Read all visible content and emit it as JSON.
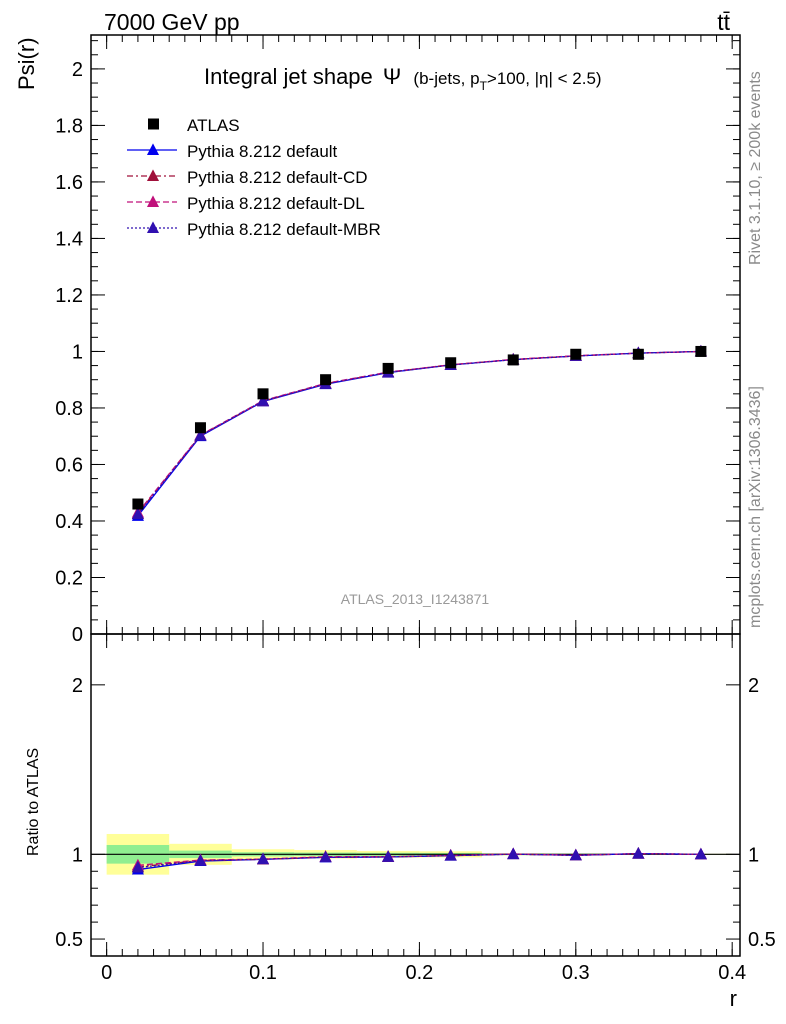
{
  "header": {
    "left": "7000 GeV pp",
    "right": "tt̄"
  },
  "side_labels": {
    "rivet": "Rivet 3.1.10, ≥ 200k events",
    "mcplots": "mcplots.cern.ch [arXiv:1306.3436]"
  },
  "chart_data": {
    "type": "line",
    "title": "Integral jet shape",
    "title_symbol": "Ψ",
    "title_cuts": "(b-jets, p",
    "title_cuts_sub": "T",
    "title_cuts_rest": ">100, |η| < 2.5)",
    "watermark": "ATLAS_2013_I1243871",
    "xlabel": "r",
    "ylabel": "Psi(r)",
    "xlim": [
      -0.01,
      0.405
    ],
    "ylim": [
      0,
      2.12
    ],
    "x_ticks": [
      0,
      0.1,
      0.2,
      0.3,
      0.4
    ],
    "x_tick_labels": [
      "0",
      "0.1",
      "0.2",
      "0.3",
      "0.4"
    ],
    "y_ticks": [
      0,
      0.2,
      0.4,
      0.6,
      0.8,
      1,
      1.2,
      1.4,
      1.6,
      1.8,
      2
    ],
    "y_tick_labels": [
      "0",
      "0.2",
      "0.4",
      "0.6",
      "0.8",
      "1",
      "1.2",
      "1.4",
      "1.6",
      "1.8",
      "2"
    ],
    "x": [
      0.02,
      0.06,
      0.1,
      0.14,
      0.18,
      0.22,
      0.26,
      0.3,
      0.34,
      0.38
    ],
    "data": {
      "name": "ATLAS",
      "values": [
        0.46,
        0.73,
        0.85,
        0.9,
        0.94,
        0.96,
        0.97,
        0.99,
        0.99,
        1.0
      ]
    },
    "series": [
      {
        "name": "Pythia 8.212 default",
        "color": "#0000ee",
        "dash": "solid",
        "values": [
          0.418,
          0.7,
          0.823,
          0.884,
          0.925,
          0.952,
          0.971,
          0.984,
          0.994,
          1.0
        ]
      },
      {
        "name": "Pythia 8.212 default-CD",
        "color": "#a0103a",
        "dash": "dashdot",
        "values": [
          0.426,
          0.703,
          0.824,
          0.886,
          0.926,
          0.953,
          0.971,
          0.984,
          0.994,
          1.0
        ]
      },
      {
        "name": "Pythia 8.212 default-DL",
        "color": "#c0107a",
        "dash": "dashed",
        "values": [
          0.43,
          0.704,
          0.826,
          0.887,
          0.927,
          0.953,
          0.972,
          0.985,
          0.994,
          1.0
        ]
      },
      {
        "name": "Pythia 8.212 default-MBR",
        "color": "#3010b0",
        "dash": "dotted",
        "values": [
          0.424,
          0.702,
          0.825,
          0.885,
          0.926,
          0.952,
          0.971,
          0.984,
          0.994,
          1.0
        ]
      }
    ],
    "ratio": {
      "ylabel": "Ratio to ATLAS",
      "ylim": [
        0.4,
        2.3
      ],
      "y_ticks": [
        0.5,
        1,
        2
      ],
      "y_tick_labels": [
        "0.5",
        "1",
        "2"
      ],
      "bin_edges": [
        0.0,
        0.04,
        0.08,
        0.12,
        0.16,
        0.2,
        0.24,
        0.28,
        0.32,
        0.36,
        0.4
      ],
      "stat_band": [
        0.055,
        0.022,
        0.012,
        0.01,
        0.009,
        0.008,
        0.005,
        0.004,
        0.003,
        0.002
      ],
      "total_band": [
        0.12,
        0.062,
        0.03,
        0.025,
        0.02,
        0.018,
        0.006,
        0.005,
        0.004,
        0.003
      ],
      "stat_color": "#90ee90",
      "total_color": "#ffff99",
      "series_values": [
        [
          0.91,
          0.96,
          0.97,
          0.982,
          0.984,
          0.992,
          1.001,
          0.994,
          1.004,
          1.0
        ],
        [
          0.926,
          0.964,
          0.97,
          0.984,
          0.985,
          0.993,
          1.001,
          0.994,
          1.004,
          1.0
        ],
        [
          0.935,
          0.966,
          0.972,
          0.986,
          0.986,
          0.993,
          1.002,
          0.995,
          1.004,
          1.0
        ],
        [
          0.922,
          0.962,
          0.971,
          0.983,
          0.985,
          0.992,
          1.001,
          0.994,
          1.004,
          1.0
        ]
      ]
    }
  }
}
